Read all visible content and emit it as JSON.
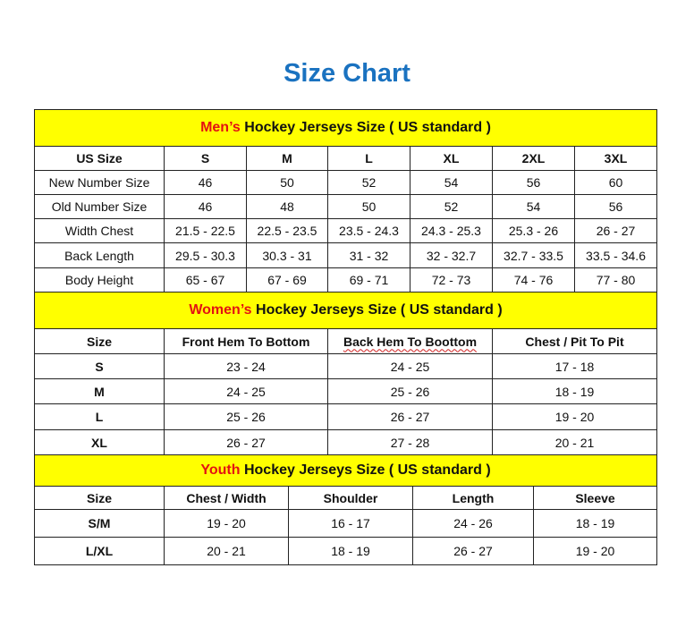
{
  "title": "Size Chart",
  "colors": {
    "title": "#1a72c0",
    "section_bg": "#ffff00",
    "accent": "#e31212"
  },
  "mens": {
    "heading_accent": "Men’s",
    "heading_rest": " Hockey Jerseys Size ( US standard )",
    "headers": [
      "US Size",
      "S",
      "M",
      "L",
      "XL",
      "2XL",
      "3XL"
    ],
    "rows": [
      [
        "New Number Size",
        "46",
        "50",
        "52",
        "54",
        "56",
        "60"
      ],
      [
        "Old Number Size",
        "46",
        "48",
        "50",
        "52",
        "54",
        "56"
      ],
      [
        "Width Chest",
        "21.5 - 22.5",
        "22.5 - 23.5",
        "23.5 - 24.3",
        "24.3 - 25.3",
        "25.3 - 26",
        "26 - 27"
      ],
      [
        "Back Length",
        "29.5 - 30.3",
        "30.3 - 31",
        "31 - 32",
        "32 - 32.7",
        "32.7 - 33.5",
        "33.5 - 34.6"
      ],
      [
        "Body Height",
        "65 - 67",
        "67 - 69",
        "69 - 71",
        "72 - 73",
        "74 - 76",
        "77 - 80"
      ]
    ]
  },
  "womens": {
    "heading_accent": "Women’s",
    "heading_rest": " Hockey Jerseys Size ( US standard )",
    "headers": [
      "Size",
      "Front Hem To Bottom",
      "Back Hem To Boottom",
      "Chest / Pit To Pit"
    ],
    "rows": [
      [
        "S",
        "23 - 24",
        "24 - 25",
        "17 - 18"
      ],
      [
        "M",
        "24 - 25",
        "25 - 26",
        "18 - 19"
      ],
      [
        "L",
        "25 - 26",
        "26 - 27",
        "19 - 20"
      ],
      [
        "XL",
        "26 - 27",
        "27 - 28",
        "20 - 21"
      ]
    ]
  },
  "youth": {
    "heading_accent": "Youth",
    "heading_rest": " Hockey Jerseys Size ( US standard )",
    "headers": [
      "Size",
      "Chest / Width",
      "Shoulder",
      "Length",
      "Sleeve"
    ],
    "rows": [
      [
        "S/M",
        "19 - 20",
        "16 - 17",
        "24 - 26",
        "18 - 19"
      ],
      [
        "L/XL",
        "20 - 21",
        "18 - 19",
        "26 - 27",
        "19 - 20"
      ]
    ]
  }
}
